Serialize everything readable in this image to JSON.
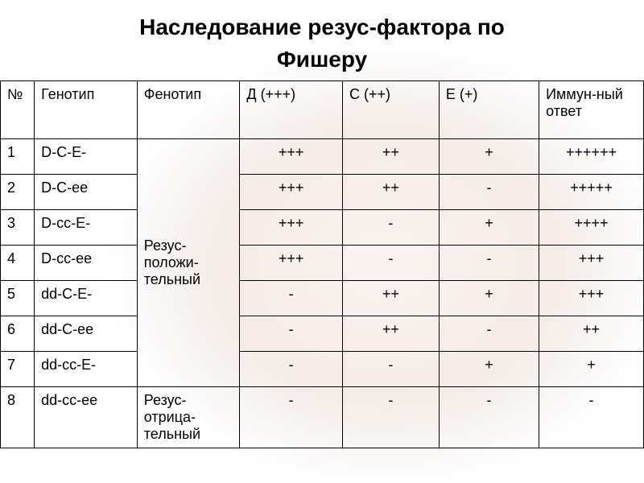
{
  "title_line1": "Наследование резус-фактора по",
  "title_line2": "Фишеру",
  "headers": {
    "num": "№",
    "genotype": "Генотип",
    "phenotype": "Фенотип",
    "d": "Д (+++)",
    "c": "С (++)",
    "e": "Е (+)",
    "immune": "Иммун-ный ответ"
  },
  "phenotype_positive": "Резус-положи-тельный",
  "phenotype_negative": "Резус-отрица-тельный",
  "rows": [
    {
      "n": "1",
      "geno": "D-C-E-",
      "d": "+++",
      "c": "++",
      "e": "+",
      "imm": "++++++"
    },
    {
      "n": "2",
      "geno": "D-C-ee",
      "d": "+++",
      "c": "++",
      "e": "-",
      "imm": "+++++"
    },
    {
      "n": "3",
      "geno": "D-cc-E-",
      "d": "+++",
      "c": "-",
      "e": "+",
      "imm": "++++"
    },
    {
      "n": "4",
      "geno": "D-cc-ee",
      "d": "+++",
      "c": "-",
      "e": "-",
      "imm": "+++"
    },
    {
      "n": "5",
      "geno": "dd-C-E-",
      "d": "-",
      "c": "++",
      "e": "+",
      "imm": "+++"
    },
    {
      "n": "6",
      "geno": "dd-C-ee",
      "d": "-",
      "c": "++",
      "e": "-",
      "imm": "++"
    },
    {
      "n": "7",
      "geno": "dd-cc-E-",
      "d": "-",
      "c": "-",
      "e": "+",
      "imm": "+"
    },
    {
      "n": "8",
      "geno": "dd-cc-ee",
      "d": "-",
      "c": "-",
      "e": "-",
      "imm": "-"
    }
  ],
  "style": {
    "title_fontsize": 28,
    "cell_fontsize": 18,
    "border_color": "#000000",
    "text_color": "#000000",
    "background_color": "#ffffff",
    "col_widths": {
      "num": 38,
      "genotype": 115,
      "phenotype": 115,
      "d": 115,
      "c": 108,
      "e": 112,
      "immune": 117
    }
  }
}
